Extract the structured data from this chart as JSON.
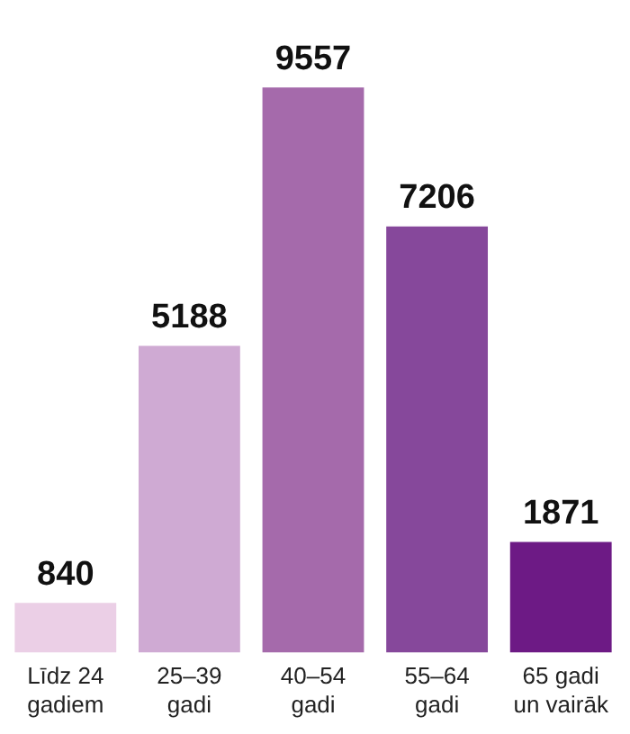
{
  "chart_data": {
    "type": "bar",
    "categories": [
      "Līdz 24 gadiem",
      "25–39 gadi",
      "40–54 gadi",
      "55–64 gadi",
      "65 gadi un vairāk"
    ],
    "values": [
      840,
      5188,
      9557,
      7206,
      1871
    ],
    "colors": [
      "#ebcfe6",
      "#cfaad3",
      "#a56aab",
      "#86489b",
      "#6d1a85"
    ],
    "data_labels": true,
    "grid": false,
    "legend": false
  }
}
